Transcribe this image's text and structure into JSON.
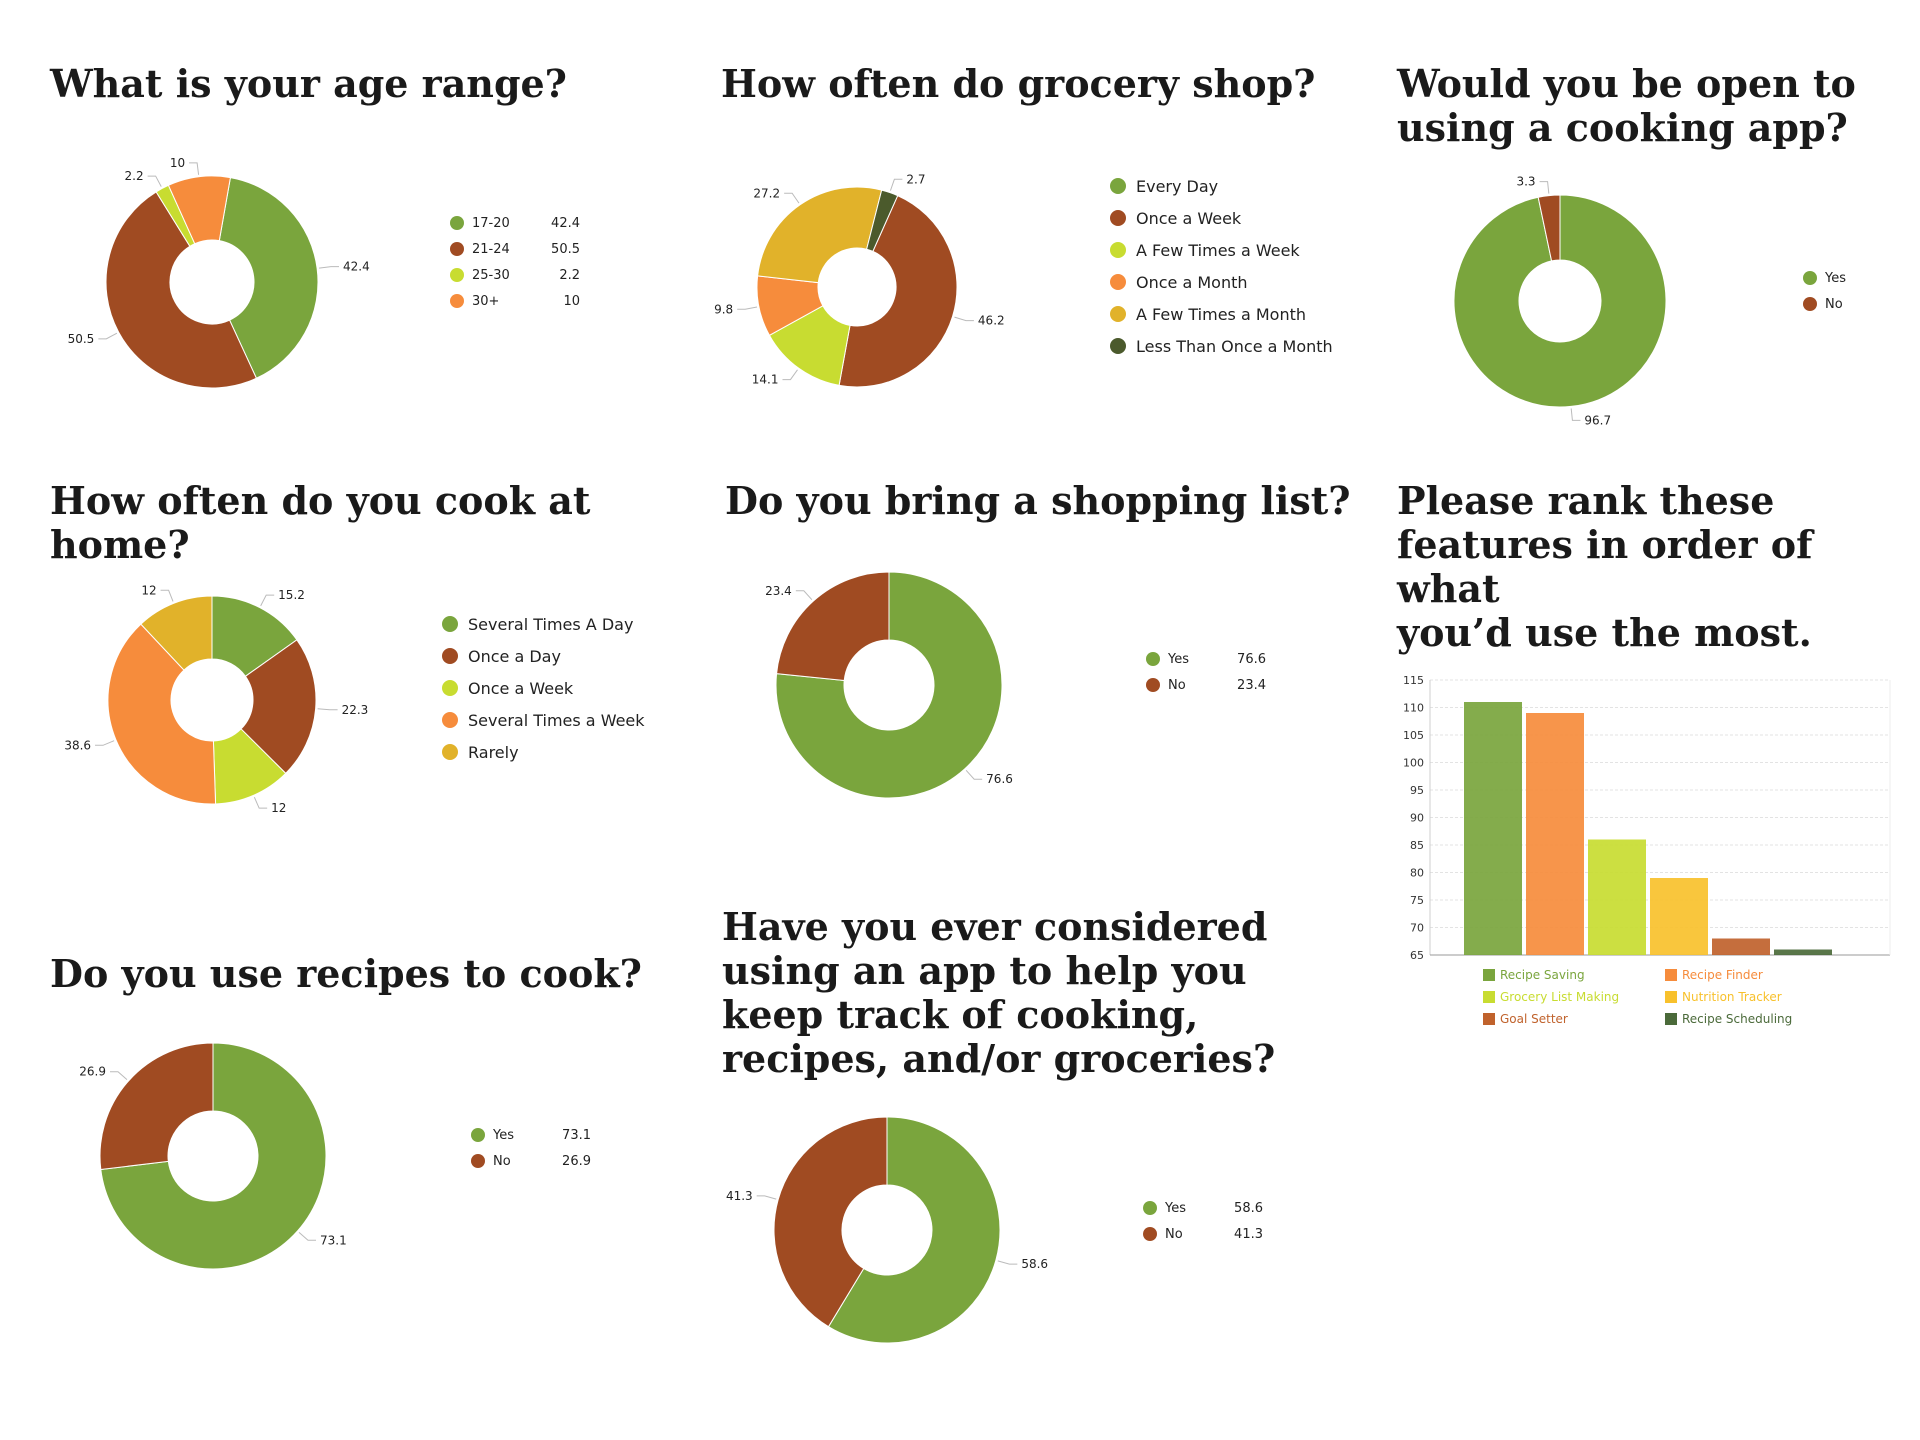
{
  "chart_data": [
    {
      "id": "age",
      "type": "pie",
      "title": "What is your age range?",
      "categories": [
        "17-20",
        "21-24",
        "25-30",
        "30+"
      ],
      "values": [
        42.4,
        50.5,
        2.2,
        10
      ],
      "colors": [
        "#7aa53d",
        "#a04b22",
        "#c8dc31",
        "#f68c3c"
      ],
      "slice_labels": [
        "42.4",
        "50.5",
        "2.2",
        "10"
      ],
      "legend_values": [
        "42.4",
        "50.5",
        "2.2",
        "10"
      ],
      "legend": "right"
    },
    {
      "id": "grocery",
      "type": "pie",
      "title": "How often do grocery shop?",
      "categories": [
        "Every Day",
        "Once a Week",
        "A Few Times a Week",
        "Once a Month",
        "A Few Times a Month",
        "Less Than Once a Month"
      ],
      "values": [
        0,
        46.2,
        14.1,
        9.8,
        27.2,
        2.7
      ],
      "colors": [
        "#7aa53d",
        "#a04b22",
        "#c8dc31",
        "#f68c3c",
        "#e1b22a",
        "#4b5a2c"
      ],
      "slice_labels": [
        "",
        "46.2",
        "14.1",
        "9.8",
        "27.2",
        "2.7"
      ],
      "legend": "right"
    },
    {
      "id": "app-open",
      "type": "pie",
      "title": "Would you be open to\nusing a cooking app?",
      "categories": [
        "Yes",
        "No"
      ],
      "values": [
        96.7,
        3.3
      ],
      "colors": [
        "#7aa53d",
        "#a04b22"
      ],
      "slice_labels": [
        "96.7",
        "3.3"
      ],
      "legend": "right"
    },
    {
      "id": "cook-home",
      "type": "pie",
      "title": "How often do you cook at home?",
      "categories": [
        "Several Times A Day",
        "Once a Day",
        "Once a Week",
        "Several Times a Week",
        "Rarely"
      ],
      "values": [
        15.2,
        22.3,
        12,
        38.6,
        12
      ],
      "colors": [
        "#7aa53d",
        "#a04b22",
        "#c8dc31",
        "#f68c3c",
        "#e1b22a"
      ],
      "slice_labels": [
        "15.2",
        "22.3",
        "12",
        "38.6",
        "12"
      ],
      "legend": "right"
    },
    {
      "id": "shopping-list",
      "type": "pie",
      "title": "Do you bring a shopping list?",
      "categories": [
        "Yes",
        "No"
      ],
      "values": [
        76.6,
        23.4
      ],
      "colors": [
        "#7aa53d",
        "#a04b22"
      ],
      "slice_labels": [
        "76.6",
        "23.4"
      ],
      "legend_values": [
        "76.6",
        "23.4"
      ],
      "legend": "right"
    },
    {
      "id": "recipes",
      "type": "pie",
      "title": "Do you use recipes to cook?",
      "categories": [
        "Yes",
        "No"
      ],
      "values": [
        73.1,
        26.9
      ],
      "colors": [
        "#7aa53d",
        "#a04b22"
      ],
      "slice_labels": [
        "73.1",
        "26.9"
      ],
      "legend_values": [
        "73.1",
        "26.9"
      ],
      "legend": "right"
    },
    {
      "id": "considered-app",
      "type": "pie",
      "title": "Have you ever considered\nusing an app to help you\nkeep track of cooking,\nrecipes, and/or groceries?",
      "categories": [
        "Yes",
        "No"
      ],
      "values": [
        58.6,
        41.3
      ],
      "colors": [
        "#7aa53d",
        "#a04b22"
      ],
      "slice_labels": [
        "58.6",
        "41.3"
      ],
      "legend_values": [
        "58.6",
        "41.3"
      ],
      "legend": "right"
    },
    {
      "id": "rank-features",
      "type": "bar",
      "title": "Please rank these\nfeatures in order of what\nyou’d use the most.",
      "categories": [
        "Recipe Saving",
        "Recipe Finder",
        "Grocery List Making",
        "Nutrition Tracker",
        "Goal Setter",
        "Recipe Scheduling"
      ],
      "values": [
        111,
        109,
        86,
        79,
        68,
        66
      ],
      "colors": [
        "#7aa53d",
        "#f68c3c",
        "#c8dc31",
        "#f8c12c",
        "#c0622c",
        "#4b6a3a"
      ],
      "ylim": [
        65,
        115
      ],
      "yticks": [
        "65",
        "70",
        "75",
        "80",
        "85",
        "90",
        "95",
        "100",
        "105",
        "110",
        "115"
      ],
      "grid": true,
      "legend": "bottom"
    }
  ]
}
